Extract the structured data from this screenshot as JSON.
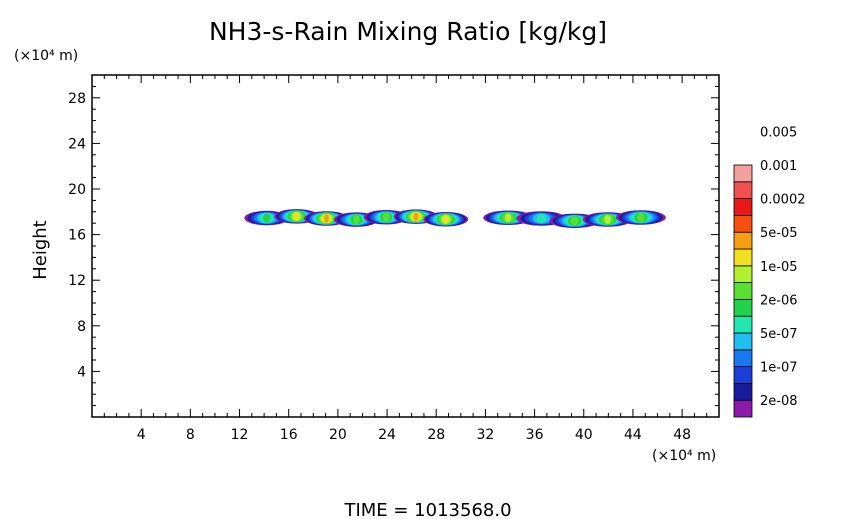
{
  "chart_data": {
    "type": "heatmap",
    "title": "NH3-s-Rain Mixing Ratio [kg/kg]",
    "ylabel": "Height",
    "x_unit_label": "(×10⁴ m)",
    "y_unit_label": "(×10⁴ m)",
    "footer": "TIME = 1013568.0",
    "xlim": [
      0,
      51
    ],
    "ylim": [
      0,
      30
    ],
    "x_ticks": [
      4,
      8,
      12,
      16,
      20,
      24,
      28,
      32,
      36,
      40,
      44,
      48
    ],
    "y_ticks": [
      4,
      8,
      12,
      16,
      20,
      24,
      28
    ],
    "x_tick_labels": [
      "4",
      "8",
      "12",
      "16",
      "20",
      "24",
      "28",
      "32",
      "36",
      "40",
      "44",
      "48"
    ],
    "y_tick_labels": [
      "4",
      "8",
      "12",
      "16",
      "20",
      "24",
      "28"
    ],
    "colorbar": {
      "colors": [
        "#8b1aa8",
        "#1a1a9c",
        "#1a3fd6",
        "#1a78ee",
        "#20bff0",
        "#20e8b0",
        "#22d24a",
        "#58e030",
        "#b0f030",
        "#f0e020",
        "#f5a010",
        "#f55010",
        "#e81818",
        "#f05050",
        "#f5a0a0"
      ],
      "labels": [
        "2e-08",
        "1e-07",
        "5e-07",
        "2e-06",
        "1e-05",
        "5e-05",
        "0.0002",
        "0.001",
        "0.005"
      ]
    },
    "features": [
      {
        "x_start": 13,
        "x_end": 30,
        "y_low": 16.9,
        "y_high": 18.0,
        "max_level": "5e-05"
      },
      {
        "x_start": 32.5,
        "x_end": 46,
        "y_low": 16.8,
        "y_high": 17.9,
        "max_level": "1e-05"
      }
    ]
  }
}
